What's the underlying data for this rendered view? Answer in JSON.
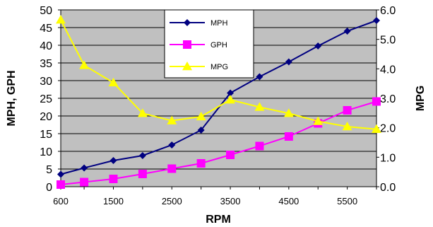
{
  "chart_data": {
    "type": "line",
    "title": "",
    "xlabel": "RPM",
    "ylabel_left": "MPH, GPH",
    "ylabel_right": "MPG",
    "x": [
      600,
      1000,
      1500,
      2000,
      2500,
      3000,
      3500,
      4000,
      4500,
      5000,
      5500,
      6000
    ],
    "x_tick_labels": [
      "600",
      "1500",
      "2500",
      "3500",
      "4500",
      "5500"
    ],
    "x_tick_values": [
      600,
      1500,
      2500,
      3500,
      4500,
      5500
    ],
    "ylim_left": [
      0,
      50
    ],
    "ylim_right": [
      0,
      6
    ],
    "y_left_ticks": [
      "0",
      "5",
      "10",
      "15",
      "20",
      "25",
      "30",
      "35",
      "40",
      "45",
      "50"
    ],
    "y_right_ticks": [
      "0.0",
      "1.0",
      "2.0",
      "3.0",
      "4.0",
      "5.0",
      "6.0"
    ],
    "grid": true,
    "legend_position": "top-center",
    "plot_background": "#c0c0c0",
    "series": [
      {
        "name": "MPH",
        "axis": "left",
        "color": "#000080",
        "marker": "diamond",
        "values": [
          3.5,
          5.3,
          7.4,
          8.8,
          11.8,
          16.0,
          26.5,
          31.1,
          35.3,
          39.8,
          44.0,
          47.0
        ]
      },
      {
        "name": "GPH",
        "axis": "left",
        "color": "#ff00ff",
        "marker": "square",
        "values": [
          0.6,
          1.3,
          2.2,
          3.6,
          5.1,
          6.6,
          9.0,
          11.5,
          14.2,
          17.9,
          21.6,
          24.1
        ]
      },
      {
        "name": "MPG",
        "axis": "right",
        "color": "#ffff00",
        "marker": "triangle",
        "values": [
          5.66,
          4.12,
          3.53,
          2.49,
          2.24,
          2.38,
          2.95,
          2.7,
          2.49,
          2.22,
          2.04,
          1.95
        ]
      }
    ]
  }
}
